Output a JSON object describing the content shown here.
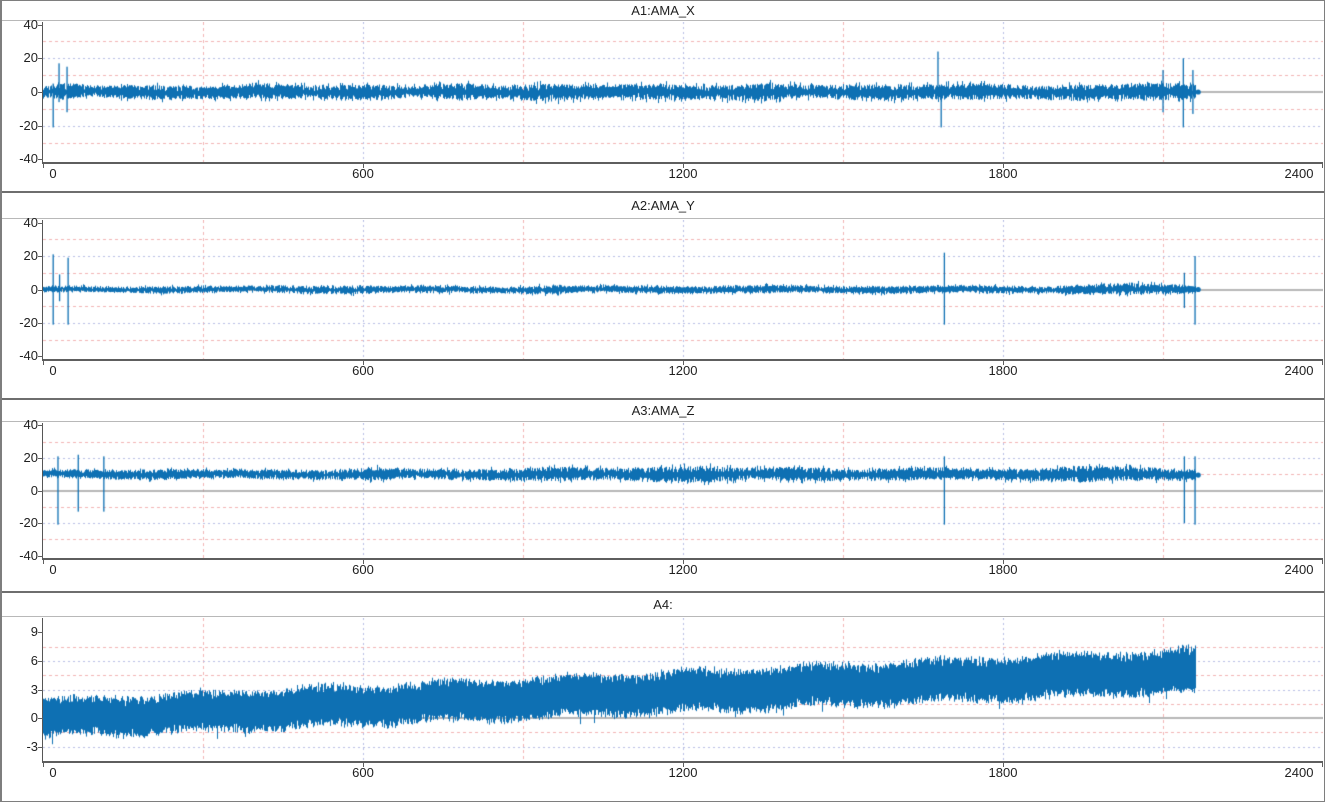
{
  "colors": {
    "signal": "#0e70b3",
    "grid_minor": "#f2b3b3",
    "grid_major": "#b7bee5",
    "zero_line": "#9e9e9e",
    "axis_line": "#5e5e5e",
    "panel_border": "#6e6e6e",
    "title_separator": "#b8b8b8",
    "text": "#1f1f1f",
    "background": "#ffffff",
    "window_border": "#7e7e7e"
  },
  "chart_data": [
    {
      "type": "line",
      "title": "A1:AMA_X",
      "x": {
        "min": 0,
        "max": 2400,
        "ticks": [
          0,
          600,
          1200,
          1800,
          2400
        ],
        "minor_grid": [
          300,
          900,
          1500,
          2100
        ],
        "major_grid": [
          600,
          1200,
          1800
        ]
      },
      "y": {
        "min": -41.5,
        "max": 41.5,
        "ticks": [
          40,
          20,
          0,
          -20,
          -40
        ],
        "minor_grid": [
          30,
          10,
          -10,
          -30
        ],
        "major_grid": [
          20,
          -20
        ]
      },
      "baseline": 0,
      "data_end": 2160,
      "noise_envelope": [
        [
          0,
          3.5
        ],
        [
          40,
          5
        ],
        [
          100,
          3.5
        ],
        [
          200,
          4.5
        ],
        [
          300,
          3.8
        ],
        [
          400,
          5
        ],
        [
          500,
          4
        ],
        [
          600,
          5
        ],
        [
          700,
          3.5
        ],
        [
          780,
          5.5
        ],
        [
          850,
          4
        ],
        [
          950,
          5.5
        ],
        [
          1050,
          4
        ],
        [
          1150,
          5
        ],
        [
          1250,
          4.2
        ],
        [
          1350,
          5.5
        ],
        [
          1430,
          4
        ],
        [
          1550,
          5
        ],
        [
          1650,
          4.5
        ],
        [
          1760,
          5
        ],
        [
          1850,
          4
        ],
        [
          1950,
          5
        ],
        [
          2020,
          4.5
        ],
        [
          2080,
          5.5
        ],
        [
          2160,
          4.5
        ]
      ],
      "spikes": [
        [
          19,
          5,
          -21
        ],
        [
          30,
          17,
          -6
        ],
        [
          45,
          15,
          -12
        ],
        [
          1678,
          24,
          -4
        ],
        [
          1684,
          4,
          -21
        ],
        [
          2100,
          13,
          -12
        ],
        [
          2138,
          20,
          -21
        ],
        [
          2156,
          13,
          -13
        ]
      ],
      "end_dot": [
        2166,
        0
      ]
    },
    {
      "type": "line",
      "title": "A2:AMA_Y",
      "x": {
        "min": 0,
        "max": 2400,
        "ticks": [
          0,
          600,
          1200,
          1800,
          2400
        ],
        "minor_grid": [
          300,
          900,
          1500,
          2100
        ],
        "major_grid": [
          600,
          1200,
          1800
        ]
      },
      "y": {
        "min": -41.5,
        "max": 41.5,
        "ticks": [
          40,
          20,
          0,
          -20,
          -40
        ],
        "minor_grid": [
          30,
          10,
          -10,
          -30
        ],
        "major_grid": [
          20,
          -20
        ]
      },
      "baseline": 0,
      "data_end": 2160,
      "noise_envelope": [
        [
          0,
          2
        ],
        [
          120,
          1.8
        ],
        [
          240,
          2.3
        ],
        [
          360,
          1.8
        ],
        [
          480,
          2.2
        ],
        [
          600,
          2.6
        ],
        [
          660,
          2
        ],
        [
          760,
          2.4
        ],
        [
          860,
          1.9
        ],
        [
          950,
          2.8
        ],
        [
          1020,
          2
        ],
        [
          1150,
          2.4
        ],
        [
          1250,
          2
        ],
        [
          1350,
          2.6
        ],
        [
          1450,
          2
        ],
        [
          1560,
          2.5
        ],
        [
          1660,
          2.1
        ],
        [
          1780,
          2.3
        ],
        [
          1880,
          2
        ],
        [
          1960,
          3
        ],
        [
          2040,
          3.6
        ],
        [
          2100,
          2.8
        ],
        [
          2160,
          2.4
        ]
      ],
      "spikes": [
        [
          19,
          21,
          -21
        ],
        [
          31,
          9,
          -7
        ],
        [
          47,
          19,
          -21
        ],
        [
          1690,
          22,
          -21
        ],
        [
          2140,
          10,
          -11
        ],
        [
          2160,
          20,
          -21
        ]
      ],
      "end_dot": [
        2166,
        0
      ]
    },
    {
      "type": "line",
      "title": "A3:AMA_Z",
      "x": {
        "min": 0,
        "max": 2400,
        "ticks": [
          0,
          600,
          1200,
          1800,
          2400
        ],
        "minor_grid": [
          300,
          900,
          1500,
          2100
        ],
        "major_grid": [
          600,
          1200,
          1800
        ]
      },
      "y": {
        "min": -41.5,
        "max": 41.5,
        "ticks": [
          40,
          20,
          0,
          -20,
          -40
        ],
        "minor_grid": [
          30,
          10,
          -10,
          -30
        ],
        "major_grid": [
          20,
          -20
        ]
      },
      "baseline": 10,
      "data_end": 2160,
      "noise_envelope": [
        [
          0,
          2.5
        ],
        [
          100,
          3
        ],
        [
          220,
          3.4
        ],
        [
          320,
          2.6
        ],
        [
          430,
          3.2
        ],
        [
          520,
          3
        ],
        [
          620,
          4.2
        ],
        [
          700,
          3
        ],
        [
          800,
          3.4
        ],
        [
          900,
          4
        ],
        [
          980,
          4.6
        ],
        [
          1060,
          3.6
        ],
        [
          1160,
          5
        ],
        [
          1240,
          5.4
        ],
        [
          1320,
          3.8
        ],
        [
          1420,
          4.6
        ],
        [
          1520,
          3.6
        ],
        [
          1640,
          4.2
        ],
        [
          1740,
          3.4
        ],
        [
          1840,
          3.8
        ],
        [
          1940,
          5.2
        ],
        [
          2030,
          4.6
        ],
        [
          2110,
          3.8
        ],
        [
          2160,
          3.4
        ]
      ],
      "spikes": [
        [
          28,
          21,
          -21
        ],
        [
          66,
          22,
          -13
        ],
        [
          114,
          21,
          -13
        ],
        [
          1690,
          21,
          -21
        ],
        [
          2140,
          21,
          -20
        ],
        [
          2160,
          21,
          -21
        ]
      ],
      "end_dot": [
        2166,
        9.5
      ]
    },
    {
      "type": "line",
      "title": "A4:",
      "x": {
        "min": 0,
        "max": 2400,
        "ticks": [
          0,
          600,
          1200,
          1800,
          2400
        ],
        "minor_grid": [
          300,
          900,
          1500,
          2100
        ],
        "major_grid": [
          600,
          1200,
          1800
        ]
      },
      "y": {
        "min": -4.5,
        "max": 10.5,
        "ticks": [
          9,
          6,
          3,
          0,
          -3
        ],
        "minor_grid": [
          7.5,
          4.5,
          1.5,
          -1.5
        ],
        "major_grid": [
          6,
          3,
          -3
        ]
      },
      "baseline": 0,
      "data_end": 2160,
      "band": {
        "center_start": -0.05,
        "center_end": 5.0,
        "half_start": 2.1,
        "half_end": 2.4
      },
      "spikes": [],
      "end_dot": null
    }
  ]
}
